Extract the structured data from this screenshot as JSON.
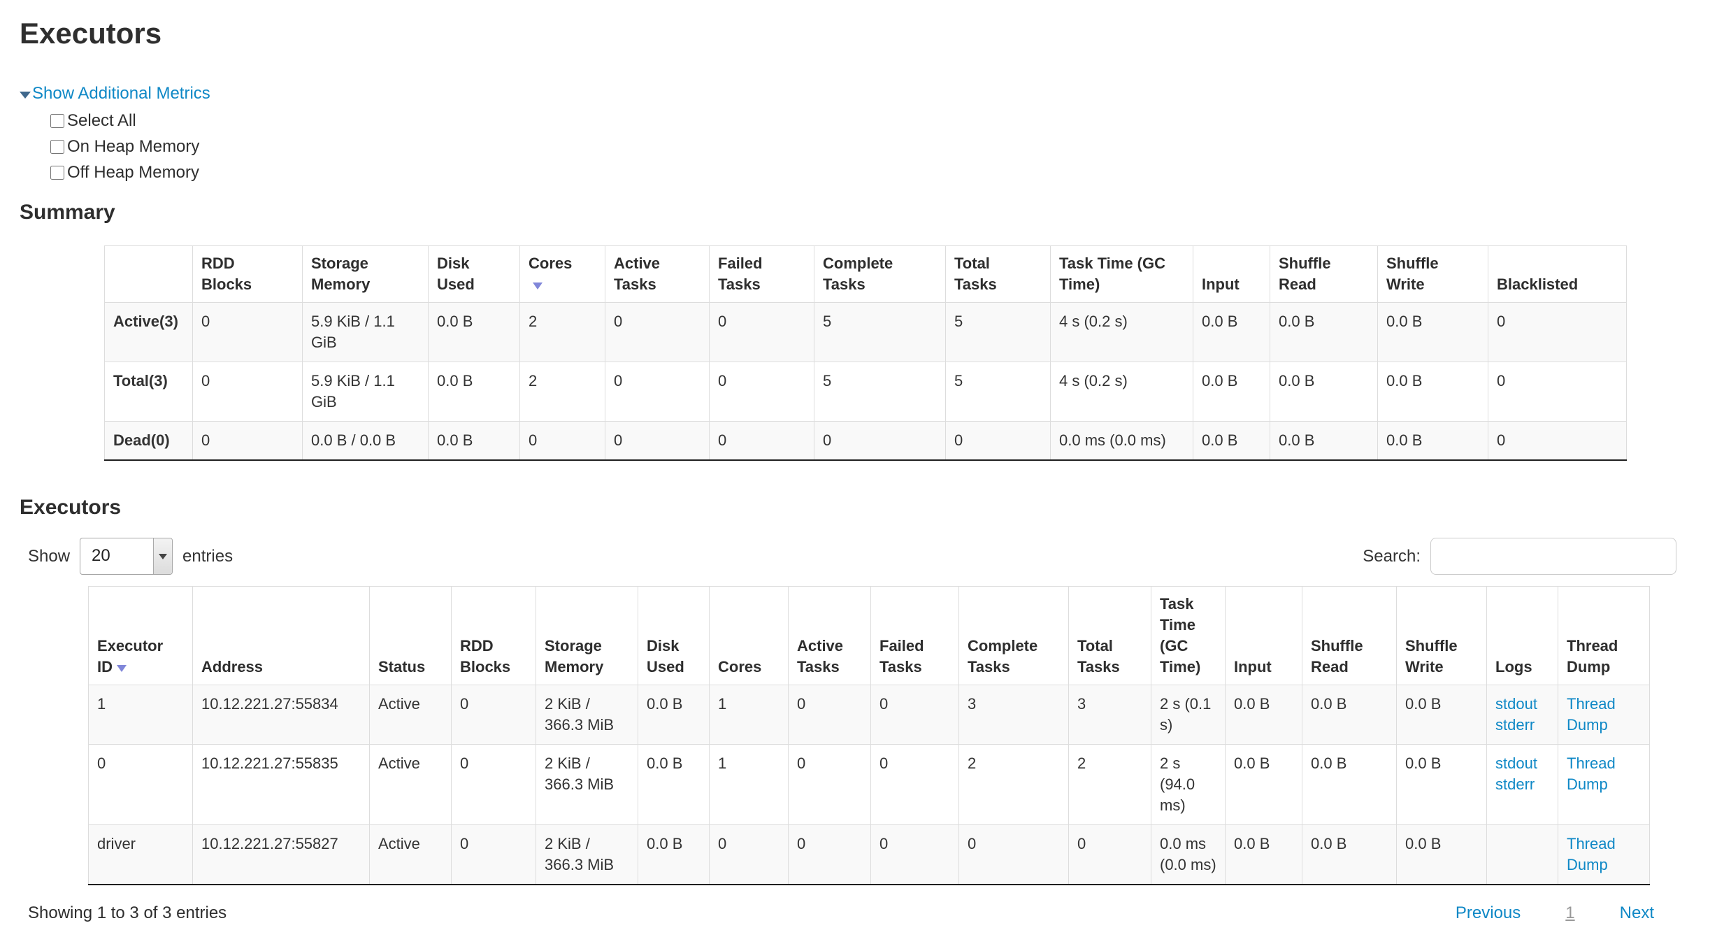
{
  "colors": {
    "link_blue": "#0f88c6",
    "sort_arrow": "#8086d9",
    "row_stripe": "#f9f9f9",
    "table_border": "#dddddd",
    "text": "#333333"
  },
  "page": {
    "title": "Executors",
    "metrics_toggle": {
      "label": "Show Additional Metrics",
      "arrow_icon": "triangle-down"
    },
    "metric_checkboxes": [
      {
        "label": "Select All",
        "checked": false
      },
      {
        "label": "On Heap Memory",
        "checked": false
      },
      {
        "label": "Off Heap Memory",
        "checked": false
      }
    ]
  },
  "summary_section": {
    "heading": "Summary",
    "table": {
      "headers": [
        "",
        "RDD Blocks",
        "Storage Memory",
        "Disk Used",
        "Cores",
        "Active Tasks",
        "Failed Tasks",
        "Complete Tasks",
        "Total Tasks",
        "Task Time (GC Time)",
        "Input",
        "Shuffle Read",
        "Shuffle Write",
        "Blacklisted"
      ],
      "sorted_column": "Cores",
      "sort_direction": "descending",
      "rows": [
        {
          "label": "Active(3)",
          "values": [
            "0",
            "5.9 KiB / 1.1 GiB",
            "0.0 B",
            "2",
            "0",
            "0",
            "5",
            "5",
            "4 s (0.2 s)",
            "0.0 B",
            "0.0 B",
            "0.0 B",
            "0"
          ]
        },
        {
          "label": "Total(3)",
          "values": [
            "0",
            "5.9 KiB / 1.1 GiB",
            "0.0 B",
            "2",
            "0",
            "0",
            "5",
            "5",
            "4 s (0.2 s)",
            "0.0 B",
            "0.0 B",
            "0.0 B",
            "0"
          ]
        },
        {
          "label": "Dead(0)",
          "values": [
            "0",
            "0.0 B / 0.0 B",
            "0.0 B",
            "0",
            "0",
            "0",
            "0",
            "0",
            "0.0 ms (0.0 ms)",
            "0.0 B",
            "0.0 B",
            "0.0 B",
            "0"
          ]
        }
      ]
    }
  },
  "executors_section": {
    "heading": "Executors",
    "length_control": {
      "prefix": "Show",
      "value": "20",
      "suffix": "entries"
    },
    "search": {
      "label": "Search:",
      "value": ""
    },
    "table": {
      "headers": [
        "Executor ID",
        "Address",
        "Status",
        "RDD Blocks",
        "Storage Memory",
        "Disk Used",
        "Cores",
        "Active Tasks",
        "Failed Tasks",
        "Complete Tasks",
        "Total Tasks",
        "Task Time (GC Time)",
        "Input",
        "Shuffle Read",
        "Shuffle Write",
        "Logs",
        "Thread Dump"
      ],
      "sorted_column": "Executor ID",
      "sort_direction": "descending",
      "rows": [
        {
          "cells": [
            "1",
            "10.12.221.27:55834",
            "Active",
            "0",
            "2 KiB / 366.3 MiB",
            "0.0 B",
            "1",
            "0",
            "0",
            "3",
            "3",
            "2 s (0.1 s)",
            "0.0 B",
            "0.0 B",
            "0.0 B"
          ],
          "logs": [
            "stdout",
            "stderr"
          ],
          "thread_dump": "Thread Dump"
        },
        {
          "cells": [
            "0",
            "10.12.221.27:55835",
            "Active",
            "0",
            "2 KiB / 366.3 MiB",
            "0.0 B",
            "1",
            "0",
            "0",
            "2",
            "2",
            "2 s (94.0 ms)",
            "0.0 B",
            "0.0 B",
            "0.0 B"
          ],
          "logs": [
            "stdout",
            "stderr"
          ],
          "thread_dump": "Thread Dump"
        },
        {
          "cells": [
            "driver",
            "10.12.221.27:55827",
            "Active",
            "0",
            "2 KiB / 366.3 MiB",
            "0.0 B",
            "0",
            "0",
            "0",
            "0",
            "0",
            "0.0 ms (0.0 ms)",
            "0.0 B",
            "0.0 B",
            "0.0 B"
          ],
          "logs": [],
          "thread_dump": "Thread Dump"
        }
      ]
    },
    "footer": {
      "info": "Showing 1 to 3 of 3 entries",
      "pagination": {
        "previous": "Previous",
        "current_page": "1",
        "next": "Next"
      }
    }
  }
}
